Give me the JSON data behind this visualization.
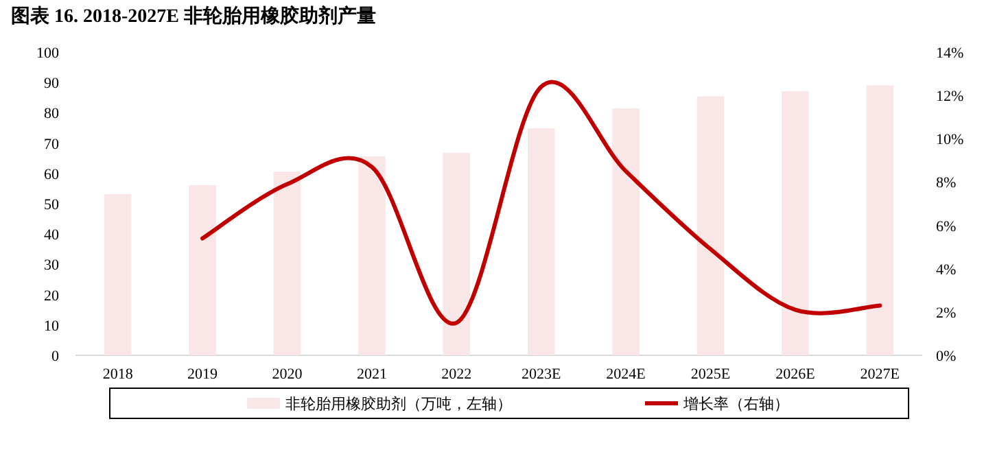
{
  "chart_data": {
    "type": "bar",
    "title": "图表 16. 2018-2027E 非轮胎用橡胶助剂产量",
    "categories": [
      "2018",
      "2019",
      "2020",
      "2021",
      "2022",
      "2023E",
      "2024E",
      "2025E",
      "2026E",
      "2027E"
    ],
    "series": [
      {
        "name": "非轮胎用橡胶助剂（万吨，左轴）",
        "color": "#f9e6e6",
        "values": [
          53.2,
          56.1,
          60.6,
          65.6,
          66.8,
          74.9,
          81.4,
          85.4,
          87.1,
          89.0
        ]
      },
      {
        "name": "增长率（右轴）",
        "type": "line",
        "axis": "y2",
        "color": "#c00000",
        "values": [
          null,
          5.4,
          7.9,
          8.7,
          1.5,
          12.4,
          8.5,
          4.9,
          2.1,
          2.3
        ]
      }
    ],
    "ylim": [
      0,
      100
    ],
    "yticks": [
      0,
      10,
      20,
      30,
      40,
      50,
      60,
      70,
      80,
      90,
      100
    ],
    "y2lim": [
      0,
      14
    ],
    "y2ticks": [
      {
        "value": 0,
        "label": "0%"
      },
      {
        "value": 2,
        "label": "2%"
      },
      {
        "value": 4,
        "label": "4%"
      },
      {
        "value": 6,
        "label": "6%"
      },
      {
        "value": 8,
        "label": "8%"
      },
      {
        "value": 10,
        "label": "10%"
      },
      {
        "value": 12,
        "label": "12%"
      },
      {
        "value": 14,
        "label": "14%"
      }
    ],
    "grid": false,
    "legend": "bottom"
  }
}
